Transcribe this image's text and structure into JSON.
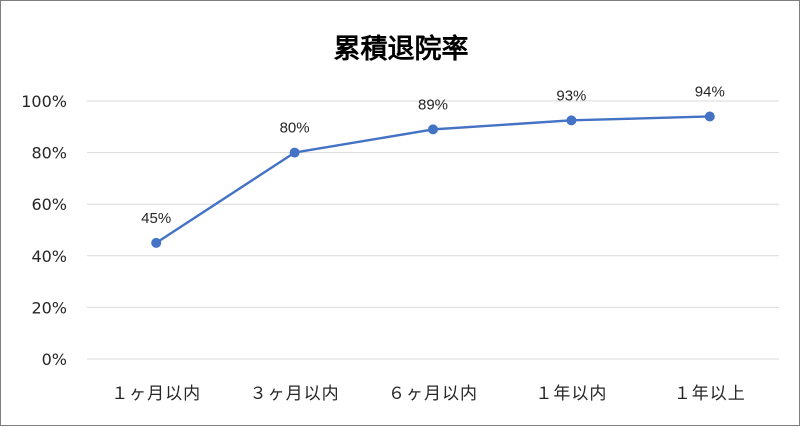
{
  "chart_data": {
    "type": "line",
    "title": "累積退院率",
    "categories": [
      "１ヶ月以内",
      "３ヶ月以内",
      "６ヶ月以内",
      "１年以内",
      "１年以上"
    ],
    "series": [
      {
        "values": [
          0.45,
          0.8,
          0.89,
          0.925,
          0.94
        ]
      }
    ],
    "data_labels": [
      "45%",
      "80%",
      "89%",
      "93%",
      "94%"
    ],
    "y_ticks": [
      "0%",
      "20%",
      "40%",
      "60%",
      "80%",
      "100%"
    ],
    "ylim": [
      0,
      1
    ],
    "grid": true,
    "legend": "none",
    "colors": {
      "series": "#4472c4"
    }
  }
}
